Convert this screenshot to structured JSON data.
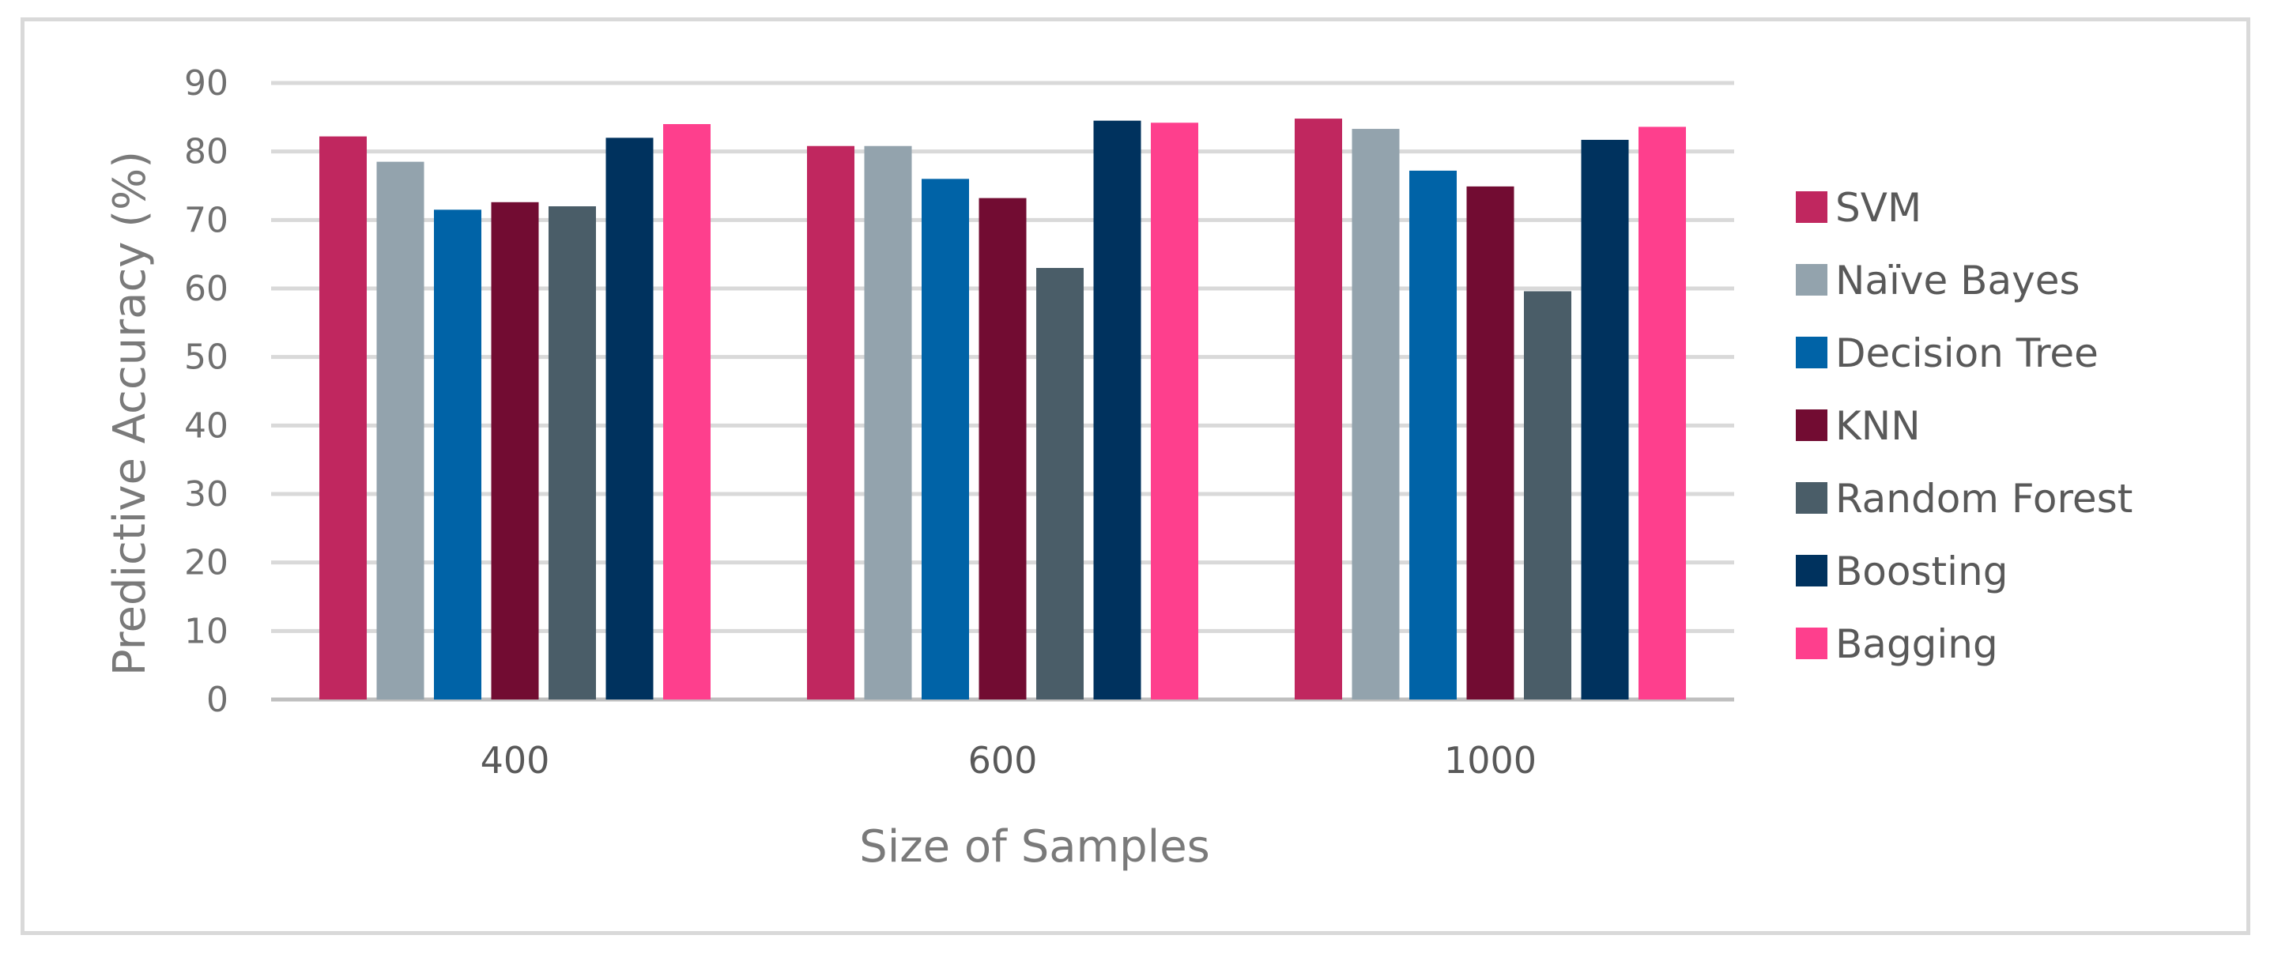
{
  "chart_data": {
    "type": "bar",
    "categories": [
      "400",
      "600",
      "1000"
    ],
    "series": [
      {
        "name": "SVM",
        "color": "#c0275f",
        "values": [
          82.2,
          80.8,
          84.8
        ]
      },
      {
        "name": "Naïve Bayes",
        "color": "#93a3ad",
        "values": [
          78.5,
          80.8,
          83.3
        ]
      },
      {
        "name": "Decision Tree",
        "color": "#0063a7",
        "values": [
          71.5,
          76.0,
          77.2
        ]
      },
      {
        "name": "KNN",
        "color": "#720c32",
        "values": [
          72.6,
          73.2,
          74.9
        ]
      },
      {
        "name": "Random Forest",
        "color": "#4a5d68",
        "values": [
          72.0,
          63.0,
          59.6
        ]
      },
      {
        "name": "Boosting",
        "color": "#00325e",
        "values": [
          82.0,
          84.5,
          81.7
        ]
      },
      {
        "name": "Bagging",
        "color": "#fe3f8d",
        "values": [
          84.0,
          84.2,
          83.6
        ]
      }
    ],
    "xlabel": "Size of Samples",
    "ylabel": "Predictive Accuracy (%)",
    "ylim": [
      0,
      90
    ],
    "yticks": [
      "0",
      "10",
      "20",
      "30",
      "40",
      "50",
      "60",
      "70",
      "80",
      "90"
    ],
    "grid": true,
    "legend": "right"
  }
}
